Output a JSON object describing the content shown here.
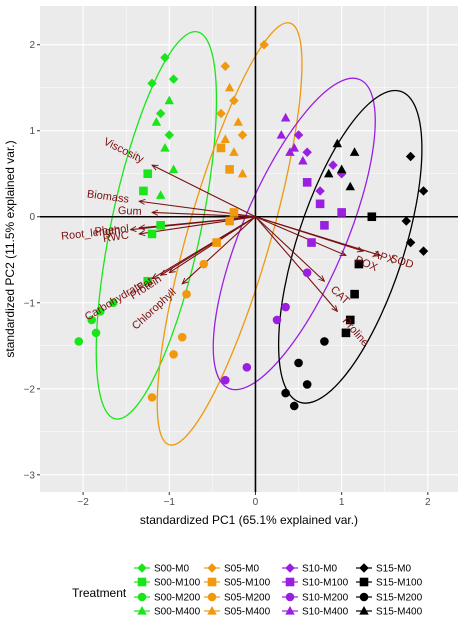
{
  "chart_data": {
    "type": "scatter",
    "subtype": "pca-biplot",
    "xlabel": "standardized PC1 (65.1% explained var.)",
    "ylabel": "standardized PC2 (11.5% explained var.)",
    "xlim": [
      -2.5,
      2.35
    ],
    "ylim": [
      -3.2,
      2.45
    ],
    "x_ticks": [
      -2,
      -1,
      0,
      1,
      2
    ],
    "y_ticks": [
      -3,
      -2,
      -1,
      0,
      1,
      2
    ],
    "grid": true,
    "legend_title": "Treatment",
    "legend_position": "bottom",
    "colors": {
      "S00": "#19e619",
      "S05": "#f0980e",
      "S10": "#9a1fe0",
      "S15": "#000000",
      "arrow": "#7a1111",
      "panel_bg": "#ebebeb",
      "grid": "#ffffff"
    },
    "shapes": {
      "M0": "diamond",
      "M100": "square",
      "M200": "circle",
      "M400": "triangle"
    },
    "groups": [
      {
        "name": "S00",
        "ellipse": {
          "cx": -1.15,
          "cy": -0.1,
          "rx": 0.52,
          "ry": 2.3,
          "angle": 78
        },
        "series": [
          {
            "name": "S00-M0",
            "points": [
              [
                -1.05,
                1.85
              ],
              [
                -0.95,
                1.6
              ],
              [
                -1.2,
                1.55
              ],
              [
                -1.1,
                1.2
              ],
              [
                -1.0,
                0.95
              ]
            ]
          },
          {
            "name": "S00-M100",
            "points": [
              [
                -1.25,
                0.5
              ],
              [
                -1.3,
                0.3
              ],
              [
                -1.1,
                -0.1
              ],
              [
                -1.2,
                -0.2
              ],
              [
                -1.25,
                -0.75
              ]
            ]
          },
          {
            "name": "S00-M200",
            "points": [
              [
                -1.9,
                -1.2
              ],
              [
                -1.85,
                -1.35
              ],
              [
                -2.05,
                -1.45
              ],
              [
                -1.65,
                -1.0
              ],
              [
                -1.8,
                -1.1
              ]
            ]
          },
          {
            "name": "S00-M400",
            "points": [
              [
                -1.0,
                1.35
              ],
              [
                -1.15,
                1.1
              ],
              [
                -1.05,
                0.8
              ],
              [
                -0.95,
                0.55
              ],
              [
                -1.1,
                0.25
              ]
            ]
          }
        ]
      },
      {
        "name": "S05",
        "ellipse": {
          "cx": -0.3,
          "cy": -0.2,
          "rx": 0.48,
          "ry": 2.55,
          "angle": 74
        },
        "series": [
          {
            "name": "S05-M0",
            "points": [
              [
                0.1,
                2.0
              ],
              [
                -0.35,
                1.75
              ],
              [
                -0.25,
                1.35
              ],
              [
                -0.4,
                1.2
              ],
              [
                -0.15,
                0.95
              ]
            ]
          },
          {
            "name": "S05-M100",
            "points": [
              [
                -0.4,
                0.8
              ],
              [
                -0.3,
                0.55
              ],
              [
                -0.25,
                0.05
              ],
              [
                -0.3,
                -0.05
              ],
              [
                -0.45,
                -0.3
              ]
            ]
          },
          {
            "name": "S05-M200",
            "points": [
              [
                -0.85,
                -1.4
              ],
              [
                -0.95,
                -1.6
              ],
              [
                -1.2,
                -2.1
              ],
              [
                -0.8,
                -0.9
              ],
              [
                -0.6,
                -0.55
              ]
            ]
          },
          {
            "name": "S05-M400",
            "points": [
              [
                -0.3,
                1.5
              ],
              [
                -0.2,
                1.1
              ],
              [
                -0.35,
                0.9
              ],
              [
                -0.25,
                0.75
              ],
              [
                -0.15,
                0.5
              ]
            ]
          }
        ]
      },
      {
        "name": "S10",
        "ellipse": {
          "cx": 0.45,
          "cy": -0.2,
          "rx": 0.6,
          "ry": 1.95,
          "angle": 67
        },
        "series": [
          {
            "name": "S10-M0",
            "points": [
              [
                0.5,
                0.95
              ],
              [
                0.9,
                0.6
              ],
              [
                1.0,
                0.5
              ],
              [
                0.6,
                0.75
              ],
              [
                0.75,
                0.3
              ]
            ]
          },
          {
            "name": "S10-M100",
            "points": [
              [
                0.6,
                0.4
              ],
              [
                0.75,
                0.15
              ],
              [
                0.8,
                -0.1
              ],
              [
                1.0,
                0.05
              ],
              [
                0.65,
                -0.3
              ]
            ]
          },
          {
            "name": "S10-M200",
            "points": [
              [
                -0.35,
                -1.9
              ],
              [
                -0.1,
                -1.75
              ],
              [
                0.35,
                -1.05
              ],
              [
                0.6,
                -0.65
              ],
              [
                0.25,
                -1.2
              ]
            ]
          },
          {
            "name": "S10-M400",
            "points": [
              [
                0.35,
                1.15
              ],
              [
                0.45,
                0.8
              ],
              [
                0.3,
                0.95
              ],
              [
                0.4,
                0.75
              ],
              [
                0.55,
                0.65
              ]
            ]
          }
        ]
      },
      {
        "name": "S15",
        "ellipse": {
          "cx": 1.1,
          "cy": -0.35,
          "rx": 0.62,
          "ry": 1.9,
          "angle": 72
        },
        "series": [
          {
            "name": "S15-M0",
            "points": [
              [
                1.8,
                0.7
              ],
              [
                1.95,
                0.3
              ],
              [
                1.75,
                -0.05
              ],
              [
                1.8,
                -0.3
              ],
              [
                1.95,
                -0.4
              ]
            ]
          },
          {
            "name": "S15-M100",
            "points": [
              [
                1.35,
                0.0
              ],
              [
                1.2,
                -0.55
              ],
              [
                1.15,
                -0.9
              ],
              [
                1.1,
                -1.2
              ],
              [
                1.05,
                -1.35
              ]
            ]
          },
          {
            "name": "S15-M200",
            "points": [
              [
                0.35,
                -2.05
              ],
              [
                0.5,
                -1.7
              ],
              [
                0.8,
                -1.45
              ],
              [
                0.45,
                -2.2
              ],
              [
                0.6,
                -1.95
              ]
            ]
          },
          {
            "name": "S15-M400",
            "points": [
              [
                0.95,
                0.85
              ],
              [
                1.15,
                0.75
              ],
              [
                0.85,
                0.5
              ],
              [
                1.1,
                0.35
              ],
              [
                1.0,
                0.55
              ]
            ]
          }
        ]
      }
    ],
    "variables": [
      {
        "name": "Viscosity",
        "x": -1.2,
        "y": 0.6
      },
      {
        "name": "Biomass",
        "x": -1.35,
        "y": 0.18
      },
      {
        "name": "Gum",
        "x": -1.2,
        "y": 0.05
      },
      {
        "name": "Phenol",
        "x": -1.35,
        "y": -0.13
      },
      {
        "name": "Root_length",
        "x": -1.45,
        "y": -0.15
      },
      {
        "name": "RWC",
        "x": -1.35,
        "y": -0.2
      },
      {
        "name": "Carbohydrate",
        "x": -1.2,
        "y": -0.72
      },
      {
        "name": "Fat",
        "x": -1.1,
        "y": -0.68
      },
      {
        "name": "Protein",
        "x": -1.0,
        "y": -0.65
      },
      {
        "name": "Chlorophyll",
        "x": -0.85,
        "y": -0.78
      },
      {
        "name": "POX",
        "x": 1.05,
        "y": -0.45
      },
      {
        "name": "APX",
        "x": 1.25,
        "y": -0.4
      },
      {
        "name": "SOD",
        "x": 1.45,
        "y": -0.45
      },
      {
        "name": "CAT",
        "x": 0.8,
        "y": -0.75
      },
      {
        "name": "Proline",
        "x": 0.95,
        "y": -1.1
      }
    ]
  }
}
